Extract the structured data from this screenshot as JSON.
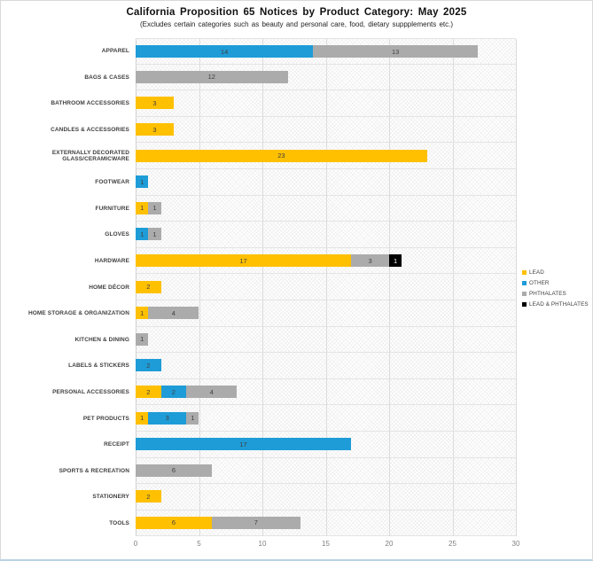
{
  "title": "California Proposition 65 Notices by Product Category: May 2025",
  "subtitle": "(Excludes certain categories such as beauty and personal care, food, dietary suppplements etc.)",
  "colors": {
    "lead": "#FFC000",
    "other": "#1E9CD7",
    "phthalates": "#ABABAB",
    "lead_and_phthalates": "#000000",
    "gridline": "#dcdcdc",
    "value_label": "#3f3f3f",
    "axis_label": "#7f7f7f"
  },
  "chart_data": {
    "type": "bar",
    "orientation": "horizontal",
    "stacked": true,
    "title": "California Proposition 65 Notices by Product Category: May 2025",
    "subtitle": "(Excludes certain categories such as beauty and personal care, food, dietary suppplements etc.)",
    "xlabel": "",
    "ylabel": "",
    "xlim": [
      0,
      30
    ],
    "xticks": [
      0,
      5,
      10,
      15,
      20,
      25,
      30
    ],
    "grid": true,
    "legend_position": "right",
    "categories": [
      "APPAREL",
      "BAGS & CASES",
      "BATHROOM ACCESSORIES",
      "CANDLES & ACCESSORIES",
      "EXTERNALLY DECORATED GLASS/CERAMICWARE",
      "FOOTWEAR",
      "FURNITURE",
      "GLOVES",
      "HARDWARE",
      "HOME DÉCOR",
      "HOME STORAGE & ORGANIZATION",
      "KITCHEN & DINING",
      "LABELS & STICKERS",
      "PERSONAL ACCESSORIES",
      "PET PRODUCTS",
      "RECEIPT",
      "SPORTS & RECREATION",
      "STATIONERY",
      "TOOLS"
    ],
    "series": [
      {
        "name": "LEAD",
        "color": "#FFC000",
        "values": [
          0,
          0,
          3,
          3,
          23,
          0,
          1,
          0,
          17,
          2,
          1,
          0,
          0,
          2,
          1,
          0,
          0,
          2,
          6
        ]
      },
      {
        "name": "OTHER",
        "color": "#1E9CD7",
        "values": [
          14,
          0,
          0,
          0,
          0,
          1,
          0,
          1,
          0,
          0,
          0,
          0,
          2,
          2,
          3,
          17,
          0,
          0,
          0
        ]
      },
      {
        "name": "PHTHALATES",
        "color": "#ABABAB",
        "values": [
          13,
          12,
          0,
          0,
          0,
          0,
          1,
          1,
          3,
          0,
          4,
          1,
          0,
          4,
          1,
          0,
          6,
          0,
          7
        ]
      },
      {
        "name": "LEAD & PHTHALATES",
        "color": "#000000",
        "values": [
          0,
          0,
          0,
          0,
          0,
          0,
          0,
          0,
          1,
          0,
          0,
          0,
          0,
          0,
          0,
          0,
          0,
          0,
          0
        ]
      }
    ]
  }
}
